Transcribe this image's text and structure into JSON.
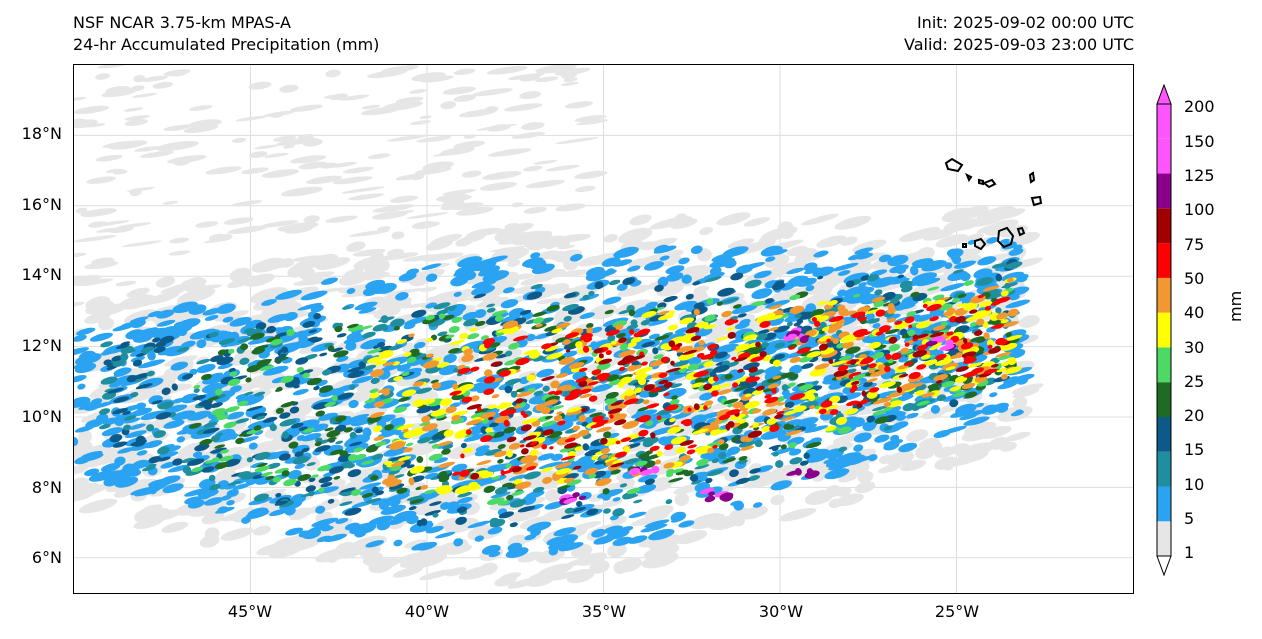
{
  "title": {
    "left_line1": "NSF NCAR 3.75-km MPAS-A",
    "left_line2": "24-hr Accumulated Precipitation (mm)",
    "right_line1": "Init: 2025-09-02 00:00 UTC",
    "right_line2": "Valid: 2025-09-03 23:00 UTC"
  },
  "map": {
    "lon_range": [
      -50,
      -20
    ],
    "lat_range": [
      5,
      20
    ],
    "lat_ticks": [
      "6°N",
      "8°N",
      "10°N",
      "12°N",
      "14°N",
      "16°N",
      "18°N"
    ],
    "lon_ticks": [
      "45°W",
      "40°W",
      "35°W",
      "30°W",
      "25°W"
    ],
    "gridlines": true
  },
  "colorbar": {
    "unit": "mm",
    "levels": [
      "1",
      "5",
      "10",
      "15",
      "20",
      "25",
      "30",
      "40",
      "50",
      "75",
      "100",
      "125",
      "150",
      "200"
    ],
    "colors": [
      "#e6e6e6",
      "#29a3f2",
      "#1f8fa0",
      "#0c5a8a",
      "#1f6b24",
      "#4cd964",
      "#ffff00",
      "#f29830",
      "#ff0000",
      "#a00000",
      "#8a008a",
      "#ff55ff"
    ],
    "extend": "both"
  }
}
